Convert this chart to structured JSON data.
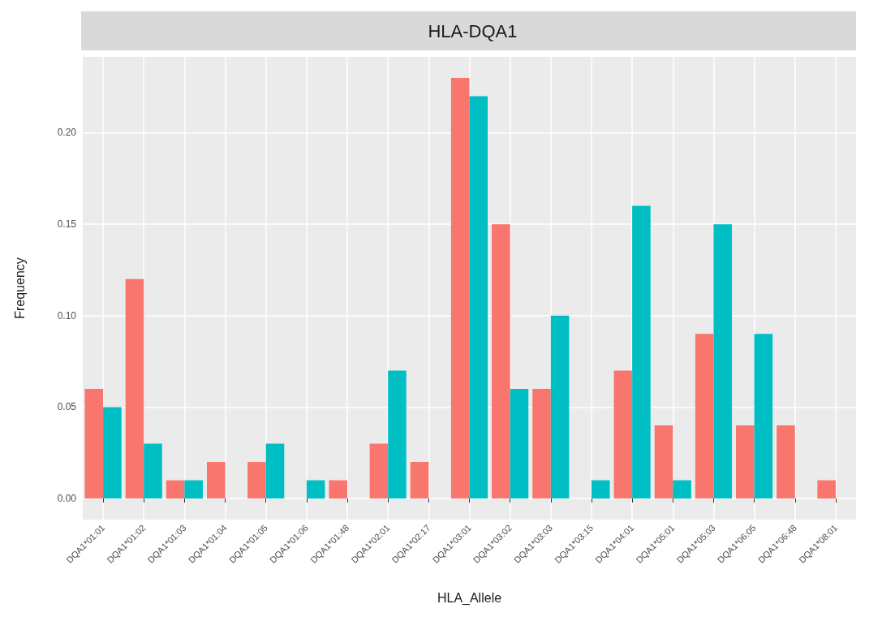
{
  "chart_data": {
    "type": "bar",
    "title": "HLA-DQA1",
    "xlabel": "HLA_Allele",
    "ylabel": "Frequency",
    "categories": [
      "DQA1*01:01",
      "DQA1*01:02",
      "DQA1*01:03",
      "DQA1*01:04",
      "DQA1*01:05",
      "DQA1*01:06",
      "DQA1*01:48",
      "DQA1*02:01",
      "DQA1*02:17",
      "DQA1*03:01",
      "DQA1*03:02",
      "DQA1*03:03",
      "DQA1*03:15",
      "DQA1*04:01",
      "DQA1*05:01",
      "DQA1*05:03",
      "DQA1*06:05",
      "DQA1*06:48",
      "DQA1*08:01"
    ],
    "series": [
      {
        "color": "#f8766d",
        "values": [
          0.06,
          0.12,
          0.01,
          0.02,
          0.02,
          null,
          0.01,
          0.03,
          0.02,
          0.23,
          0.15,
          0.06,
          null,
          0.07,
          0.04,
          0.09,
          0.04,
          0.04,
          0.01
        ]
      },
      {
        "color": "#00bfc4",
        "values": [
          0.05,
          0.03,
          0.01,
          null,
          0.03,
          0.01,
          null,
          0.07,
          null,
          0.22,
          0.06,
          0.1,
          0.01,
          0.16,
          0.01,
          0.15,
          0.09,
          null,
          null
        ]
      }
    ],
    "ylim": [
      -0.0115,
      0.2415
    ],
    "yticks": [
      {
        "value": 0,
        "label": "0.00"
      },
      {
        "value": 0.05,
        "label": "0.05"
      },
      {
        "value": 0.1,
        "label": "0.10"
      },
      {
        "value": 0.15,
        "label": "0.15"
      },
      {
        "value": 0.2,
        "label": "0.20"
      }
    ],
    "grid": true
  }
}
